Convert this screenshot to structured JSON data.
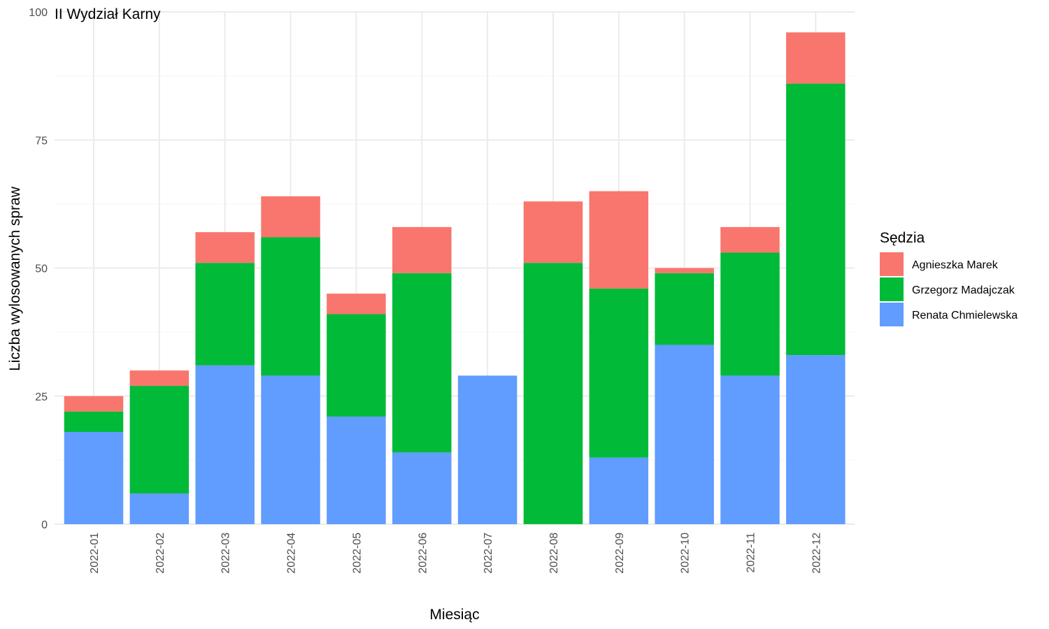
{
  "chart_data": {
    "type": "bar",
    "stacked": true,
    "panel_label": "II Wydział Karny",
    "xlabel": "Miesiąc",
    "ylabel": "Liczba wylosowanych spraw",
    "ylim": [
      0,
      100
    ],
    "yticks": [
      0,
      25,
      50,
      75,
      100
    ],
    "grid": true,
    "legend": {
      "title": "Sędzia",
      "position": "right"
    },
    "categories": [
      "2022-01",
      "2022-02",
      "2022-03",
      "2022-04",
      "2022-05",
      "2022-06",
      "2022-07",
      "2022-08",
      "2022-09",
      "2022-10",
      "2022-11",
      "2022-12"
    ],
    "series": [
      {
        "name": "Renata Chmielewska",
        "color": "#619CFF",
        "values": [
          18,
          6,
          31,
          29,
          21,
          14,
          29,
          0,
          13,
          35,
          29,
          33
        ]
      },
      {
        "name": "Grzegorz Madajczak",
        "color": "#00BA38",
        "values": [
          4,
          21,
          20,
          27,
          20,
          35,
          0,
          51,
          33,
          14,
          24,
          53
        ]
      },
      {
        "name": "Agnieszka Marek",
        "color": "#F8766D",
        "values": [
          3,
          3,
          6,
          8,
          4,
          9,
          0,
          12,
          19,
          1,
          5,
          10
        ]
      }
    ],
    "legend_order": [
      "Agnieszka Marek",
      "Grzegorz Madajczak",
      "Renata Chmielewska"
    ]
  }
}
